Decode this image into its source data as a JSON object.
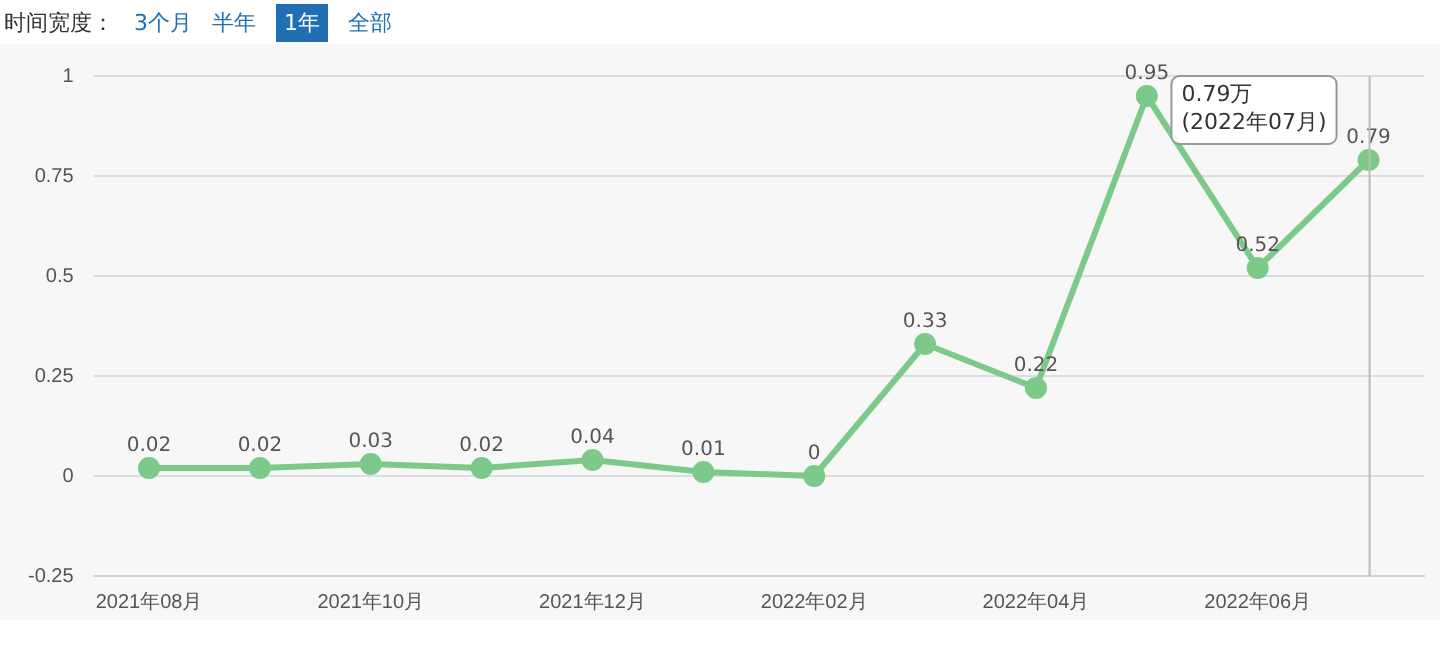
{
  "chart_data": {
    "type": "line",
    "categories": [
      "2021年08月",
      null,
      "2021年10月",
      null,
      "2021年12月",
      null,
      "2022年02月",
      null,
      "2022年04月",
      null,
      "2022年06月",
      null
    ],
    "series": [
      {
        "color": "#7cc98a",
        "values": [
          0.02,
          0.02,
          0.03,
          0.02,
          0.04,
          0.01,
          0,
          0.33,
          0.22,
          0.95,
          0.52,
          0.79
        ]
      }
    ],
    "ylim": [
      -0.25,
      1
    ],
    "yticks": [
      -0.25,
      0,
      0.25,
      0.5,
      0.75,
      1
    ],
    "grid": "y",
    "legend": false,
    "marker": "circle",
    "line_style": "solid",
    "data_labels": true,
    "annotations": [
      "时间宽度：",
      "3个月",
      "半年",
      "1年",
      "全部",
      "0.79万\n(2022年07月)"
    ]
  }
}
